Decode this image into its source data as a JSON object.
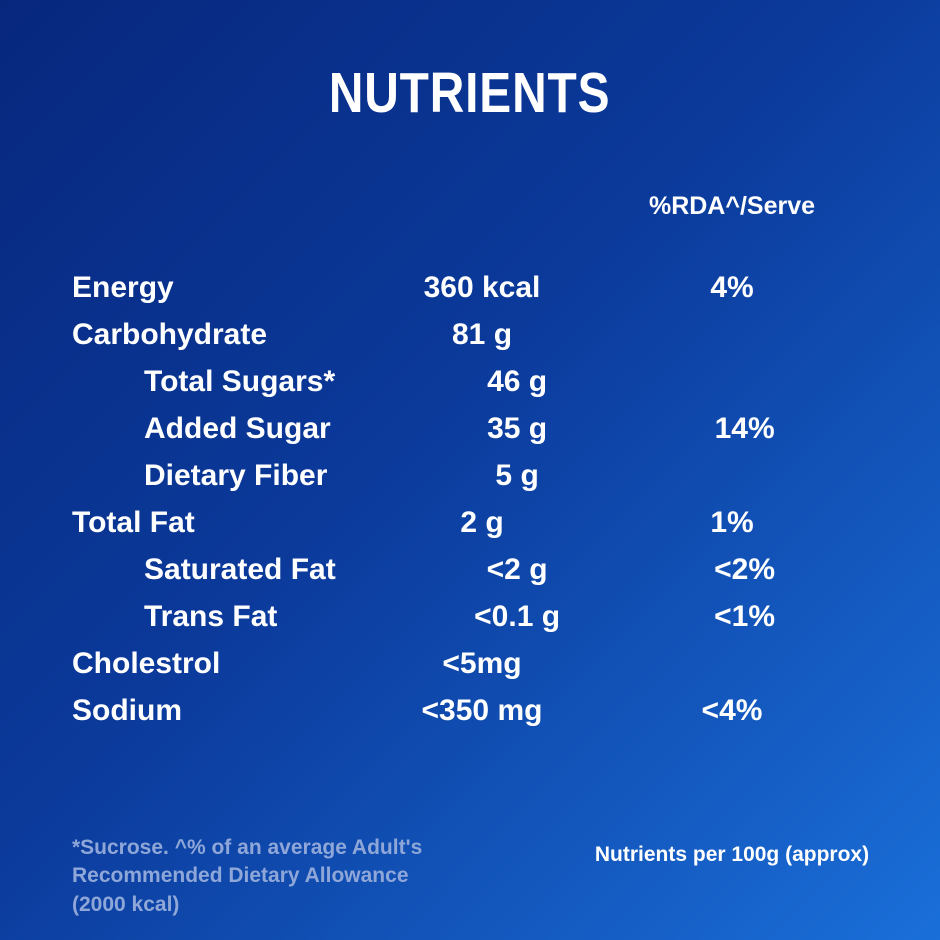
{
  "title": "NUTRIENTS",
  "table": {
    "rda_header": "%RDA^/Serve",
    "rows": [
      {
        "name": "Energy",
        "amount": "360 kcal",
        "rda": "4%"
      },
      {
        "name": "Carbohydrate",
        "amount": "81 g",
        "rda": ""
      },
      {
        "name": "Total Sugars*",
        "amount": "46 g",
        "rda": ""
      },
      {
        "name": "Added Sugar",
        "amount": "35 g",
        "rda": "14%"
      },
      {
        "name": "Dietary Fiber",
        "amount": "5 g",
        "rda": ""
      },
      {
        "name": "Total Fat",
        "amount": "2 g",
        "rda": "1%"
      },
      {
        "name": "Saturated Fat",
        "amount": "<2 g",
        "rda": "<2%"
      },
      {
        "name": "Trans Fat",
        "amount": "<0.1 g",
        "rda": "<1%"
      },
      {
        "name": "Cholestrol",
        "amount": "<5mg",
        "rda": ""
      },
      {
        "name": "Sodium",
        "amount": "<350 mg",
        "rda": "<4%"
      }
    ]
  },
  "footnotes": {
    "left": "*Sucrose. ^% of an average Adult's\nRecommended Dietary Allowance\n(2000 kcal)",
    "right": "Nutrients per 100g (approx)"
  },
  "colors": {
    "background_top_left": "#07277d",
    "background_bottom_right": "#1a6fd9",
    "text": "#ffffff",
    "footnote_text": "#8fa7d8"
  }
}
